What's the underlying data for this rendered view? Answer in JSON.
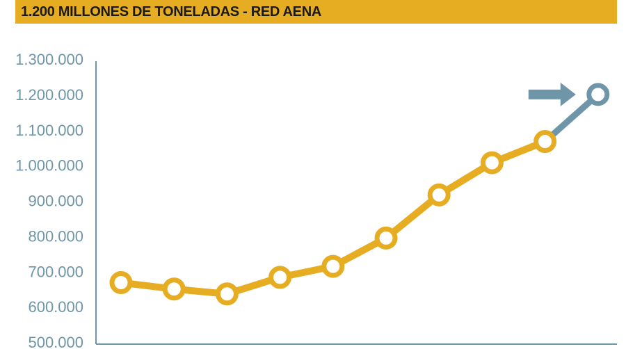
{
  "title": "1.200 MILLONES DE TONELADAS - RED AENA",
  "colors": {
    "title_bar": "#e6ac22",
    "series_main": "#e6ac22",
    "series_projection": "#6e95a8",
    "axis": "#6e95a8",
    "tick_text": "#6e95a8"
  },
  "chart_data": {
    "type": "line",
    "title": "1.200 MILLONES DE TONELADAS - RED AENA",
    "xlabel": "",
    "ylabel": "",
    "ylim": [
      500000,
      1300000
    ],
    "yticks": [
      {
        "value": 500000,
        "label": "500.000"
      },
      {
        "value": 600000,
        "label": "600.000"
      },
      {
        "value": 700000,
        "label": "700.000"
      },
      {
        "value": 800000,
        "label": "800.000"
      },
      {
        "value": 900000,
        "label": "900.000"
      },
      {
        "value": 1000000,
        "label": "1.000.000"
      },
      {
        "value": 1100000,
        "label": "1.100.000"
      },
      {
        "value": 1200000,
        "label": "1.200.000"
      },
      {
        "value": 1300000,
        "label": "1.300.000"
      }
    ],
    "grid": false,
    "legend": "none",
    "series": [
      {
        "values": [
          668000,
          650000,
          636000,
          683000,
          714000,
          794000,
          916000,
          1007000,
          1067000
        ],
        "color": "#e6ac22"
      },
      {
        "values": [
          1067000,
          1200000
        ],
        "start_index": 8,
        "color": "#6e95a8",
        "highlighted": true
      }
    ],
    "annotations": [
      {
        "type": "arrow",
        "points_to_index": 9,
        "color": "#6e95a8"
      }
    ]
  }
}
